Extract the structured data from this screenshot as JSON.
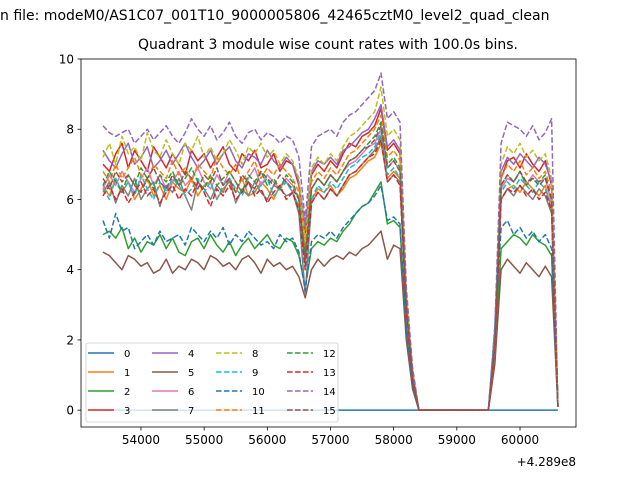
{
  "chart_data": {
    "type": "line",
    "suptitle": "n file: modeM0/AS1C07_001T10_9000005806_42465cztM0_level2_quad_clean",
    "title": "Quadrant 3 module wise count rates with 100.0s bins.",
    "xlabel": "",
    "ylabel": "",
    "x_offset_label": "+4.289e8",
    "x_offset": 428900000,
    "x_start": 53400,
    "x_step": 100,
    "xlim": [
      53051,
      60886
    ],
    "ylim": [
      -0.48,
      10
    ],
    "xticks": [
      54000,
      55000,
      56000,
      57000,
      58000,
      59000,
      60000
    ],
    "xtick_labels": [
      "54000",
      "55000",
      "56000",
      "57000",
      "58000",
      "59000",
      "60000"
    ],
    "yticks": [
      0,
      2,
      4,
      6,
      8,
      10
    ],
    "ytick_labels": [
      "0",
      "2",
      "4",
      "6",
      "8",
      "10"
    ],
    "grid": false,
    "legend_placement": "lower-left",
    "legend_columns": 4,
    "series": [
      {
        "name": "0",
        "color": "#1f77b4",
        "style": "solid",
        "values": [
          0,
          0,
          0,
          0,
          0,
          0,
          0,
          0,
          0,
          0,
          0,
          0,
          0,
          0,
          0,
          0,
          0,
          0,
          0,
          0,
          0,
          0,
          0,
          0,
          0,
          0,
          0,
          0,
          0,
          0,
          0,
          0,
          0,
          0,
          0,
          0,
          0,
          0,
          0,
          0,
          0,
          0,
          0,
          0,
          0,
          0,
          0,
          0,
          0,
          0,
          0,
          0,
          0,
          0,
          0,
          0,
          0,
          0,
          0,
          0,
          0,
          0,
          0,
          0,
          0,
          0,
          0,
          0,
          0,
          0,
          0,
          0,
          0
        ]
      },
      {
        "name": "1",
        "color": "#ff7f0e",
        "style": "solid",
        "values": [
          6.4,
          6.1,
          6.6,
          6.2,
          6.5,
          6.0,
          6.3,
          6.6,
          6.1,
          6.4,
          6.0,
          6.5,
          6.3,
          6.2,
          6.6,
          6.1,
          6.4,
          6.5,
          6.0,
          6.3,
          6.5,
          6.2,
          6.6,
          6.1,
          6.2,
          6.5,
          6.3,
          6.0,
          6.4,
          6.5,
          6.2,
          5.8,
          4.5,
          6.0,
          6.3,
          6.2,
          6.4,
          6.1,
          6.3,
          6.6,
          6.7,
          6.9,
          7.1,
          7.2,
          7.6,
          6.6,
          6.8,
          6.6,
          2.8,
          0.9,
          0,
          0,
          0,
          0,
          0,
          0,
          0,
          0,
          0,
          0,
          0,
          0,
          1.9,
          6.0,
          6.3,
          6.4,
          6.2,
          6.5,
          6.3,
          6.1,
          6.4,
          5.7,
          0.1
        ]
      },
      {
        "name": "2",
        "color": "#2ca02c",
        "style": "solid",
        "values": [
          5.0,
          5.1,
          4.9,
          5.2,
          4.6,
          4.9,
          4.5,
          4.8,
          4.7,
          5.0,
          4.6,
          4.9,
          4.5,
          4.4,
          4.8,
          4.9,
          4.6,
          5.0,
          4.7,
          4.5,
          4.8,
          4.4,
          4.7,
          4.9,
          4.6,
          4.8,
          5.0,
          4.7,
          4.6,
          4.9,
          4.8,
          4.4,
          3.5,
          4.6,
          4.8,
          4.7,
          4.9,
          4.8,
          5.1,
          5.3,
          5.6,
          5.8,
          5.9,
          6.2,
          6.5,
          5.3,
          5.4,
          5.2,
          2.3,
          0.7,
          0,
          0,
          0,
          0,
          0,
          0,
          0,
          0,
          0,
          0,
          0,
          0,
          1.4,
          4.6,
          4.8,
          5.0,
          4.9,
          4.7,
          5.0,
          4.8,
          4.7,
          4.4,
          0.1
        ]
      },
      {
        "name": "3",
        "color": "#d62728",
        "style": "solid",
        "values": [
          7.0,
          6.8,
          7.3,
          7.6,
          6.9,
          7.4,
          7.1,
          6.8,
          7.5,
          7.2,
          6.9,
          7.3,
          7.0,
          6.7,
          7.4,
          7.1,
          7.3,
          6.9,
          7.2,
          7.5,
          7.0,
          6.8,
          7.3,
          7.1,
          7.4,
          6.9,
          7.0,
          7.3,
          6.8,
          7.1,
          7.0,
          6.4,
          5.0,
          6.7,
          7.0,
          6.8,
          7.1,
          6.9,
          7.3,
          7.6,
          7.5,
          7.8,
          7.9,
          8.1,
          8.6,
          7.4,
          7.6,
          7.3,
          3.2,
          1.0,
          0,
          0,
          0,
          0,
          0,
          0,
          0,
          0,
          0,
          0,
          0,
          0,
          2.1,
          6.6,
          7.1,
          7.2,
          6.9,
          7.3,
          7.0,
          6.8,
          7.1,
          6.4,
          0.1
        ]
      },
      {
        "name": "4",
        "color": "#9467bd",
        "style": "solid",
        "values": [
          7.4,
          7.1,
          6.9,
          7.3,
          7.6,
          7.0,
          7.2,
          7.5,
          6.9,
          7.1,
          7.4,
          7.0,
          7.3,
          7.6,
          7.2,
          6.9,
          7.1,
          7.4,
          7.0,
          7.3,
          7.5,
          7.1,
          6.9,
          7.3,
          7.2,
          7.0,
          7.4,
          7.1,
          6.9,
          7.2,
          7.0,
          6.5,
          5.2,
          6.8,
          7.1,
          7.0,
          7.2,
          7.0,
          7.4,
          7.5,
          7.7,
          7.9,
          8.0,
          8.3,
          8.7,
          7.5,
          7.7,
          7.4,
          3.2,
          1.1,
          0,
          0,
          0,
          0,
          0,
          0,
          0,
          0,
          0,
          0,
          0,
          0,
          2.0,
          6.8,
          7.2,
          7.0,
          7.3,
          7.1,
          6.9,
          7.2,
          7.0,
          6.5,
          0.1
        ]
      },
      {
        "name": "5",
        "color": "#8c564b",
        "style": "solid",
        "values": [
          4.5,
          4.4,
          4.2,
          4.0,
          4.4,
          4.3,
          4.1,
          4.2,
          3.9,
          4.0,
          4.3,
          3.9,
          4.1,
          4.0,
          4.3,
          4.2,
          4.0,
          4.4,
          4.3,
          4.1,
          4.2,
          4.0,
          4.3,
          4.4,
          4.2,
          3.9,
          4.3,
          4.1,
          4.2,
          4.0,
          4.1,
          3.8,
          3.2,
          4.0,
          4.3,
          4.1,
          4.3,
          4.4,
          4.3,
          4.5,
          4.4,
          4.6,
          4.7,
          4.9,
          5.1,
          4.3,
          4.7,
          4.6,
          2.0,
          0.6,
          0,
          0,
          0,
          0,
          0,
          0,
          0,
          0,
          0,
          0,
          0,
          0,
          1.3,
          4.0,
          4.3,
          4.1,
          3.9,
          4.2,
          4.0,
          3.8,
          4.1,
          3.8,
          0.1
        ]
      },
      {
        "name": "6",
        "color": "#e377c2",
        "style": "solid",
        "values": [
          6.3,
          6.7,
          6.4,
          6.8,
          6.5,
          6.2,
          6.6,
          6.9,
          6.4,
          6.7,
          6.3,
          6.5,
          6.8,
          6.4,
          6.6,
          6.9,
          6.5,
          6.3,
          6.7,
          6.4,
          6.8,
          6.5,
          6.2,
          6.6,
          6.9,
          6.4,
          6.7,
          6.5,
          6.3,
          6.6,
          6.4,
          6.0,
          4.2,
          6.3,
          6.6,
          6.4,
          6.7,
          6.5,
          6.8,
          7.0,
          7.1,
          7.3,
          7.5,
          7.6,
          8.0,
          6.9,
          7.1,
          6.8,
          3.0,
          0.9,
          0,
          0,
          0,
          0,
          0,
          0,
          0,
          0,
          0,
          0,
          0,
          0,
          1.8,
          6.3,
          6.6,
          6.5,
          6.8,
          6.4,
          6.7,
          6.5,
          6.6,
          5.9,
          0.1
        ]
      },
      {
        "name": "7",
        "color": "#7f7f7f",
        "style": "solid",
        "values": [
          6.2,
          6.5,
          5.9,
          6.4,
          6.1,
          6.6,
          6.0,
          6.3,
          6.5,
          5.8,
          6.4,
          6.2,
          6.6,
          6.1,
          5.7,
          6.5,
          6.3,
          6.0,
          6.4,
          6.2,
          6.6,
          5.9,
          6.3,
          6.1,
          6.5,
          6.2,
          6.0,
          6.4,
          6.3,
          6.1,
          6.2,
          5.6,
          3.3,
          5.9,
          6.2,
          6.0,
          6.3,
          6.1,
          6.4,
          6.7,
          6.8,
          7.0,
          7.2,
          7.4,
          7.8,
          6.5,
          6.7,
          6.5,
          2.8,
          0.9,
          0,
          0,
          0,
          0,
          0,
          0,
          0,
          0,
          0,
          0,
          0,
          0,
          1.7,
          6.0,
          6.3,
          6.1,
          6.4,
          6.2,
          6.0,
          6.3,
          6.1,
          5.6,
          0.1
        ]
      },
      {
        "name": "8",
        "color": "#bcbd22",
        "style": "dashed",
        "values": [
          7.2,
          7.6,
          7.0,
          7.8,
          7.3,
          7.5,
          7.1,
          7.9,
          7.4,
          7.2,
          7.7,
          7.3,
          7.0,
          7.6,
          7.4,
          7.8,
          7.2,
          7.5,
          7.1,
          7.3,
          7.7,
          7.4,
          7.0,
          7.5,
          7.3,
          7.6,
          7.2,
          7.4,
          7.0,
          7.3,
          7.1,
          6.6,
          4.8,
          6.9,
          7.2,
          7.0,
          7.3,
          7.1,
          7.5,
          7.8,
          7.9,
          8.1,
          8.3,
          8.5,
          9.2,
          7.8,
          8.0,
          7.7,
          3.3,
          1.1,
          0,
          0,
          0,
          0,
          0,
          0,
          0,
          0,
          0,
          0,
          0,
          0,
          2.1,
          7.0,
          7.5,
          7.3,
          7.6,
          7.2,
          7.4,
          7.1,
          7.3,
          6.6,
          0.1
        ]
      },
      {
        "name": "9",
        "color": "#17becf",
        "style": "dashed",
        "values": [
          6.3,
          6.0,
          6.6,
          6.2,
          6.5,
          6.1,
          6.7,
          6.3,
          6.0,
          6.5,
          6.2,
          6.6,
          6.4,
          6.1,
          6.3,
          6.6,
          6.2,
          6.5,
          6.0,
          6.4,
          6.6,
          6.3,
          6.1,
          6.5,
          6.2,
          6.4,
          6.6,
          6.1,
          6.3,
          6.5,
          6.2,
          5.8,
          4.1,
          6.0,
          6.4,
          6.2,
          6.5,
          6.3,
          6.6,
          6.9,
          7.0,
          7.2,
          7.3,
          7.5,
          7.9,
          6.7,
          6.9,
          6.6,
          2.9,
          0.9,
          0,
          0,
          0,
          0,
          0,
          0,
          0,
          0,
          0,
          0,
          0,
          0,
          2.4,
          6.2,
          6.5,
          6.3,
          6.6,
          6.4,
          6.2,
          6.5,
          6.3,
          5.8,
          0.1
        ]
      },
      {
        "name": "10",
        "color": "#1f77b4",
        "style": "dashed",
        "values": [
          5.4,
          4.9,
          5.6,
          5.1,
          5.2,
          4.6,
          4.8,
          5.0,
          4.7,
          5.1,
          4.8,
          4.9,
          5.0,
          4.7,
          5.2,
          5.0,
          4.8,
          5.1,
          4.9,
          5.2,
          4.7,
          5.0,
          4.8,
          5.1,
          4.9,
          4.7,
          4.8,
          4.6,
          5.0,
          4.8,
          4.9,
          4.5,
          3.4,
          4.8,
          5.0,
          4.9,
          5.1,
          4.9,
          5.2,
          5.4,
          5.6,
          5.8,
          5.9,
          6.1,
          6.4,
          5.4,
          5.5,
          5.3,
          2.3,
          0.7,
          0,
          0,
          0,
          0,
          0,
          0,
          0,
          0,
          0,
          0,
          0,
          0,
          2.2,
          5.2,
          5.4,
          5.0,
          5.2,
          4.9,
          5.1,
          4.8,
          5.0,
          4.6,
          0.1
        ]
      },
      {
        "name": "11",
        "color": "#ff7f0e",
        "style": "dashed",
        "values": [
          6.8,
          6.5,
          7.0,
          6.6,
          6.9,
          7.2,
          6.7,
          6.5,
          7.0,
          6.8,
          6.6,
          7.1,
          6.7,
          6.9,
          6.5,
          7.0,
          6.8,
          6.6,
          7.2,
          6.9,
          6.7,
          7.0,
          6.5,
          6.8,
          7.1,
          6.6,
          6.9,
          6.7,
          7.0,
          6.8,
          6.6,
          6.2,
          4.6,
          6.5,
          6.8,
          6.6,
          6.9,
          6.7,
          7.0,
          7.3,
          7.4,
          7.6,
          7.8,
          8.0,
          8.4,
          7.2,
          7.4,
          7.1,
          3.0,
          1.0,
          0,
          0,
          0,
          0,
          0,
          0,
          0,
          0,
          0,
          0,
          0,
          0,
          2.0,
          6.6,
          7.0,
          6.8,
          7.1,
          6.7,
          6.9,
          6.6,
          6.8,
          6.2,
          0.1
        ]
      },
      {
        "name": "12",
        "color": "#2ca02c",
        "style": "dashed",
        "values": [
          6.4,
          6.8,
          6.5,
          6.2,
          6.7,
          6.4,
          6.9,
          6.6,
          6.3,
          6.7,
          6.5,
          6.8,
          6.4,
          6.6,
          6.9,
          6.5,
          6.3,
          6.7,
          6.4,
          6.6,
          6.8,
          6.5,
          6.2,
          6.7,
          6.5,
          6.8,
          6.4,
          6.6,
          6.3,
          6.7,
          6.5,
          6.0,
          4.4,
          6.3,
          6.6,
          6.4,
          6.7,
          6.5,
          6.8,
          7.1,
          7.2,
          7.4,
          7.6,
          7.8,
          8.2,
          7.0,
          7.2,
          6.9,
          3.0,
          0.9,
          0,
          0,
          0,
          0,
          0,
          0,
          0,
          0,
          0,
          0,
          0,
          0,
          1.9,
          6.4,
          6.7,
          6.5,
          6.8,
          6.4,
          6.6,
          6.5,
          6.7,
          6.0,
          0.1
        ]
      },
      {
        "name": "13",
        "color": "#d62728",
        "style": "dashed",
        "values": [
          6.1,
          6.4,
          6.0,
          6.3,
          5.9,
          6.2,
          6.5,
          6.1,
          6.3,
          5.9,
          6.2,
          6.4,
          6.0,
          6.3,
          6.1,
          6.5,
          6.2,
          5.8,
          6.3,
          6.1,
          6.4,
          6.0,
          6.2,
          6.5,
          6.1,
          6.3,
          5.9,
          6.2,
          6.4,
          6.0,
          6.2,
          5.7,
          4.0,
          5.9,
          6.2,
          6.0,
          6.3,
          6.1,
          6.4,
          6.7,
          6.8,
          7.0,
          7.2,
          7.3,
          7.7,
          6.5,
          6.7,
          6.4,
          2.8,
          0.9,
          0,
          0,
          0,
          0,
          0,
          0,
          0,
          0,
          0,
          0,
          0,
          0,
          1.8,
          6.0,
          6.3,
          6.2,
          6.4,
          6.1,
          6.3,
          6.0,
          6.2,
          5.7,
          0.1
        ]
      },
      {
        "name": "14",
        "color": "#9467bd",
        "style": "dashed",
        "values": [
          8.1,
          7.9,
          7.8,
          7.9,
          8.0,
          7.6,
          7.8,
          8.0,
          7.7,
          7.9,
          8.1,
          7.8,
          7.6,
          7.9,
          8.3,
          8.0,
          7.8,
          8.1,
          7.7,
          7.9,
          8.2,
          7.8,
          7.6,
          7.9,
          8.0,
          7.7,
          7.9,
          7.8,
          7.6,
          7.8,
          7.7,
          7.2,
          5.4,
          7.5,
          7.8,
          7.9,
          8.0,
          7.8,
          8.2,
          8.4,
          8.5,
          8.7,
          8.9,
          9.1,
          9.6,
          8.3,
          8.5,
          8.2,
          3.5,
          1.2,
          0,
          0,
          0,
          0,
          0,
          0,
          0,
          0,
          0,
          0,
          0,
          0,
          2.3,
          7.6,
          8.2,
          8.1,
          8.0,
          7.8,
          8.1,
          7.7,
          7.9,
          8.3,
          0.1
        ]
      },
      {
        "name": "15",
        "color": "#8c564b",
        "style": "dashed",
        "values": [
          6.6,
          6.3,
          6.8,
          6.5,
          6.7,
          6.4,
          6.2,
          6.6,
          6.9,
          6.5,
          6.3,
          6.7,
          6.4,
          6.8,
          6.6,
          6.3,
          6.7,
          6.5,
          6.9,
          6.4,
          6.6,
          6.2,
          6.7,
          6.5,
          6.3,
          6.8,
          6.6,
          6.4,
          6.7,
          6.5,
          6.3,
          6.0,
          4.3,
          6.3,
          6.6,
          6.4,
          6.7,
          6.5,
          6.8,
          7.1,
          7.2,
          7.4,
          7.5,
          7.7,
          8.1,
          6.9,
          7.1,
          6.8,
          3.0,
          0.9,
          0,
          0,
          0,
          0,
          0,
          0,
          0,
          0,
          0,
          0,
          0,
          0,
          1.9,
          6.4,
          6.7,
          6.5,
          6.8,
          6.5,
          6.6,
          6.4,
          6.6,
          6.0,
          0.1
        ]
      }
    ]
  }
}
